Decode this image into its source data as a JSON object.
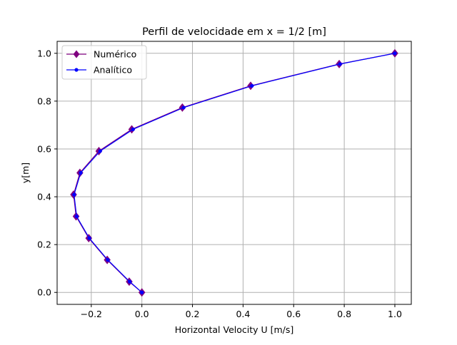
{
  "chart_data": {
    "type": "line",
    "title": "Perfil de velocidade em x = 1/2 [m]",
    "xlabel": "Horizontal Velocity U [m/s]",
    "ylabel": "y[m]",
    "xlim": [
      -0.335,
      1.065
    ],
    "ylim": [
      -0.05,
      1.05
    ],
    "xticks": [
      -0.2,
      0.0,
      0.2,
      0.4,
      0.6,
      0.8,
      1.0
    ],
    "xtick_labels": [
      "−0.2",
      "0.0",
      "0.2",
      "0.4",
      "0.6",
      "0.8",
      "1.0"
    ],
    "yticks": [
      0.0,
      0.2,
      0.4,
      0.6,
      0.8,
      1.0
    ],
    "ytick_labels": [
      "0.0",
      "0.2",
      "0.4",
      "0.6",
      "0.8",
      "1.0"
    ],
    "grid": true,
    "legend_position": "upper-left",
    "series": [
      {
        "name": "Numérico",
        "color": "#800080",
        "marker": "diamond",
        "points": [
          [
            0.0,
            0.0
          ],
          [
            -0.05,
            0.045
          ],
          [
            -0.137,
            0.136
          ],
          [
            -0.21,
            0.227
          ],
          [
            -0.26,
            0.318
          ],
          [
            -0.27,
            0.409
          ],
          [
            -0.245,
            0.5
          ],
          [
            -0.17,
            0.591
          ],
          [
            -0.04,
            0.682
          ],
          [
            0.16,
            0.773
          ],
          [
            0.43,
            0.864
          ],
          [
            0.78,
            0.955
          ],
          [
            1.0,
            1.0
          ]
        ]
      },
      {
        "name": "Analítico",
        "color": "#0000ff",
        "marker": "dot",
        "points": [
          [
            0.0,
            0.0
          ],
          [
            -0.048,
            0.045
          ],
          [
            -0.135,
            0.136
          ],
          [
            -0.208,
            0.227
          ],
          [
            -0.258,
            0.318
          ],
          [
            -0.268,
            0.409
          ],
          [
            -0.242,
            0.5
          ],
          [
            -0.165,
            0.591
          ],
          [
            -0.035,
            0.682
          ],
          [
            0.165,
            0.773
          ],
          [
            0.435,
            0.864
          ],
          [
            0.783,
            0.955
          ],
          [
            1.0,
            1.0
          ]
        ]
      }
    ]
  }
}
